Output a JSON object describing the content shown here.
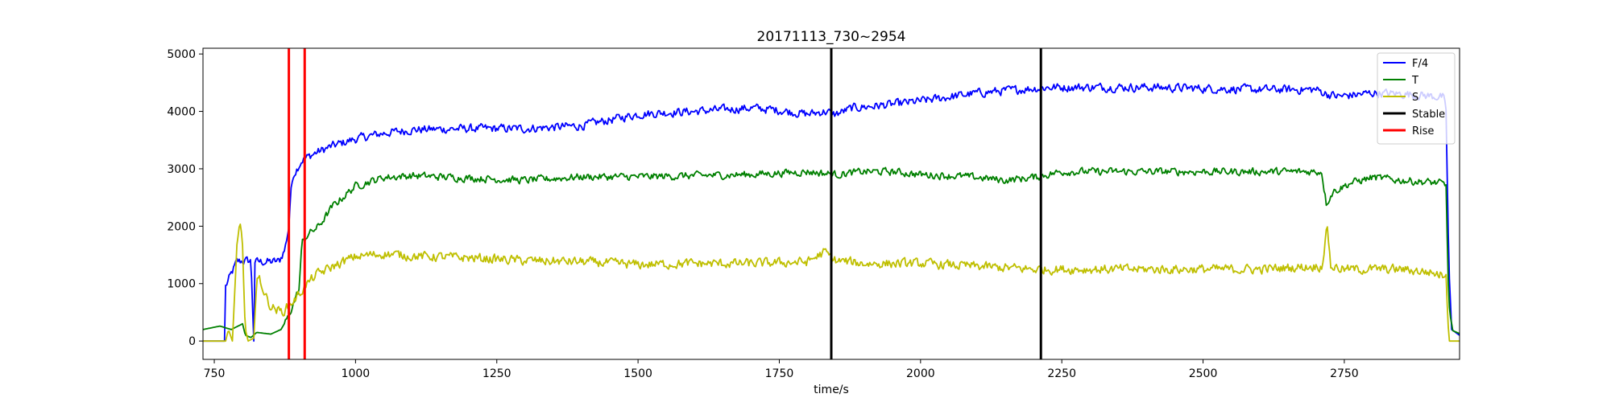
{
  "chart_data": {
    "type": "line",
    "title": "20171113_730~2954",
    "xlabel": "time/s",
    "ylabel": "",
    "xlim": [
      730,
      2954
    ],
    "ylim": [
      -320,
      5100
    ],
    "xticks": [
      750,
      1000,
      1250,
      1500,
      1750,
      2000,
      2250,
      2500,
      2750
    ],
    "yticks": [
      0,
      1000,
      2000,
      3000,
      4000,
      5000
    ],
    "grid": false,
    "legend_position": "top-right",
    "series": [
      {
        "name": "F/4",
        "color": "#0000ff",
        "noise": 110,
        "points": [
          [
            730,
            0
          ],
          [
            768,
            0
          ],
          [
            770,
            950
          ],
          [
            790,
            1380
          ],
          [
            805,
            1400
          ],
          [
            815,
            1390
          ],
          [
            820,
            0
          ],
          [
            822,
            1380
          ],
          [
            850,
            1380
          ],
          [
            865,
            1390
          ],
          [
            875,
            1600
          ],
          [
            882,
            2000
          ],
          [
            885,
            2550
          ],
          [
            890,
            2900
          ],
          [
            905,
            3150
          ],
          [
            930,
            3280
          ],
          [
            960,
            3400
          ],
          [
            1000,
            3520
          ],
          [
            1050,
            3620
          ],
          [
            1100,
            3680
          ],
          [
            1200,
            3700
          ],
          [
            1300,
            3700
          ],
          [
            1400,
            3750
          ],
          [
            1450,
            3850
          ],
          [
            1500,
            3950
          ],
          [
            1550,
            3980
          ],
          [
            1600,
            4000
          ],
          [
            1700,
            4060
          ],
          [
            1750,
            4020
          ],
          [
            1800,
            3950
          ],
          [
            1830,
            4000
          ],
          [
            1850,
            3950
          ],
          [
            1880,
            4060
          ],
          [
            1950,
            4120
          ],
          [
            2000,
            4180
          ],
          [
            2050,
            4250
          ],
          [
            2100,
            4320
          ],
          [
            2200,
            4400
          ],
          [
            2230,
            4420
          ],
          [
            2300,
            4420
          ],
          [
            2400,
            4420
          ],
          [
            2500,
            4400
          ],
          [
            2600,
            4380
          ],
          [
            2700,
            4380
          ],
          [
            2720,
            4300
          ],
          [
            2740,
            4260
          ],
          [
            2800,
            4320
          ],
          [
            2860,
            4300
          ],
          [
            2925,
            4250
          ],
          [
            2930,
            4000
          ],
          [
            2935,
            1300
          ],
          [
            2940,
            200
          ],
          [
            2954,
            100
          ]
        ]
      },
      {
        "name": "T",
        "color": "#008000",
        "noise": 95,
        "points": [
          [
            730,
            200
          ],
          [
            760,
            260
          ],
          [
            780,
            200
          ],
          [
            800,
            300
          ],
          [
            805,
            100
          ],
          [
            815,
            60
          ],
          [
            825,
            150
          ],
          [
            850,
            120
          ],
          [
            868,
            200
          ],
          [
            880,
            400
          ],
          [
            900,
            900
          ],
          [
            905,
            1700
          ],
          [
            915,
            1850
          ],
          [
            935,
            2000
          ],
          [
            960,
            2350
          ],
          [
            1000,
            2700
          ],
          [
            1050,
            2850
          ],
          [
            1100,
            2880
          ],
          [
            1200,
            2840
          ],
          [
            1300,
            2800
          ],
          [
            1400,
            2860
          ],
          [
            1500,
            2860
          ],
          [
            1600,
            2880
          ],
          [
            1700,
            2900
          ],
          [
            1800,
            2950
          ],
          [
            1850,
            2900
          ],
          [
            1900,
            2950
          ],
          [
            1950,
            2950
          ],
          [
            2000,
            2900
          ],
          [
            2050,
            2880
          ],
          [
            2100,
            2850
          ],
          [
            2150,
            2800
          ],
          [
            2200,
            2850
          ],
          [
            2250,
            2950
          ],
          [
            2300,
            2950
          ],
          [
            2400,
            2950
          ],
          [
            2500,
            2950
          ],
          [
            2600,
            2950
          ],
          [
            2650,
            2950
          ],
          [
            2700,
            2950
          ],
          [
            2710,
            2950
          ],
          [
            2718,
            2400
          ],
          [
            2730,
            2600
          ],
          [
            2760,
            2750
          ],
          [
            2800,
            2850
          ],
          [
            2850,
            2800
          ],
          [
            2920,
            2750
          ],
          [
            2930,
            2700
          ],
          [
            2935,
            600
          ],
          [
            2942,
            180
          ],
          [
            2954,
            130
          ]
        ]
      },
      {
        "name": "S",
        "color": "#bfbf00",
        "noise": 120,
        "points": [
          [
            730,
            0
          ],
          [
            770,
            0
          ],
          [
            775,
            200
          ],
          [
            782,
            0
          ],
          [
            790,
            1600
          ],
          [
            795,
            2000
          ],
          [
            800,
            1700
          ],
          [
            805,
            200
          ],
          [
            810,
            0
          ],
          [
            820,
            50
          ],
          [
            825,
            1000
          ],
          [
            830,
            1100
          ],
          [
            840,
            800
          ],
          [
            850,
            600
          ],
          [
            870,
            500
          ],
          [
            880,
            600
          ],
          [
            895,
            750
          ],
          [
            910,
            950
          ],
          [
            930,
            1150
          ],
          [
            960,
            1300
          ],
          [
            1000,
            1470
          ],
          [
            1050,
            1520
          ],
          [
            1100,
            1480
          ],
          [
            1200,
            1450
          ],
          [
            1300,
            1400
          ],
          [
            1400,
            1380
          ],
          [
            1500,
            1330
          ],
          [
            1600,
            1350
          ],
          [
            1700,
            1350
          ],
          [
            1800,
            1380
          ],
          [
            1830,
            1550
          ],
          [
            1850,
            1400
          ],
          [
            1900,
            1350
          ],
          [
            2000,
            1350
          ],
          [
            2100,
            1300
          ],
          [
            2200,
            1250
          ],
          [
            2300,
            1250
          ],
          [
            2400,
            1250
          ],
          [
            2500,
            1250
          ],
          [
            2600,
            1250
          ],
          [
            2700,
            1300
          ],
          [
            2710,
            1300
          ],
          [
            2720,
            2000
          ],
          [
            2726,
            1300
          ],
          [
            2750,
            1250
          ],
          [
            2800,
            1250
          ],
          [
            2850,
            1250
          ],
          [
            2900,
            1200
          ],
          [
            2925,
            1150
          ],
          [
            2930,
            1200
          ],
          [
            2935,
            0
          ],
          [
            2954,
            0
          ]
        ]
      }
    ],
    "vlines": [
      {
        "name": "Rise",
        "color": "#ff0000",
        "x": [
          882,
          910
        ]
      },
      {
        "name": "Stable",
        "color": "#000000",
        "x": [
          1842,
          2213
        ]
      }
    ],
    "legend": [
      {
        "label": "F/4",
        "color": "#0000ff"
      },
      {
        "label": "T",
        "color": "#008000"
      },
      {
        "label": "S",
        "color": "#bfbf00"
      },
      {
        "label": "Stable",
        "color": "#000000"
      },
      {
        "label": "Rise",
        "color": "#ff0000"
      }
    ]
  }
}
